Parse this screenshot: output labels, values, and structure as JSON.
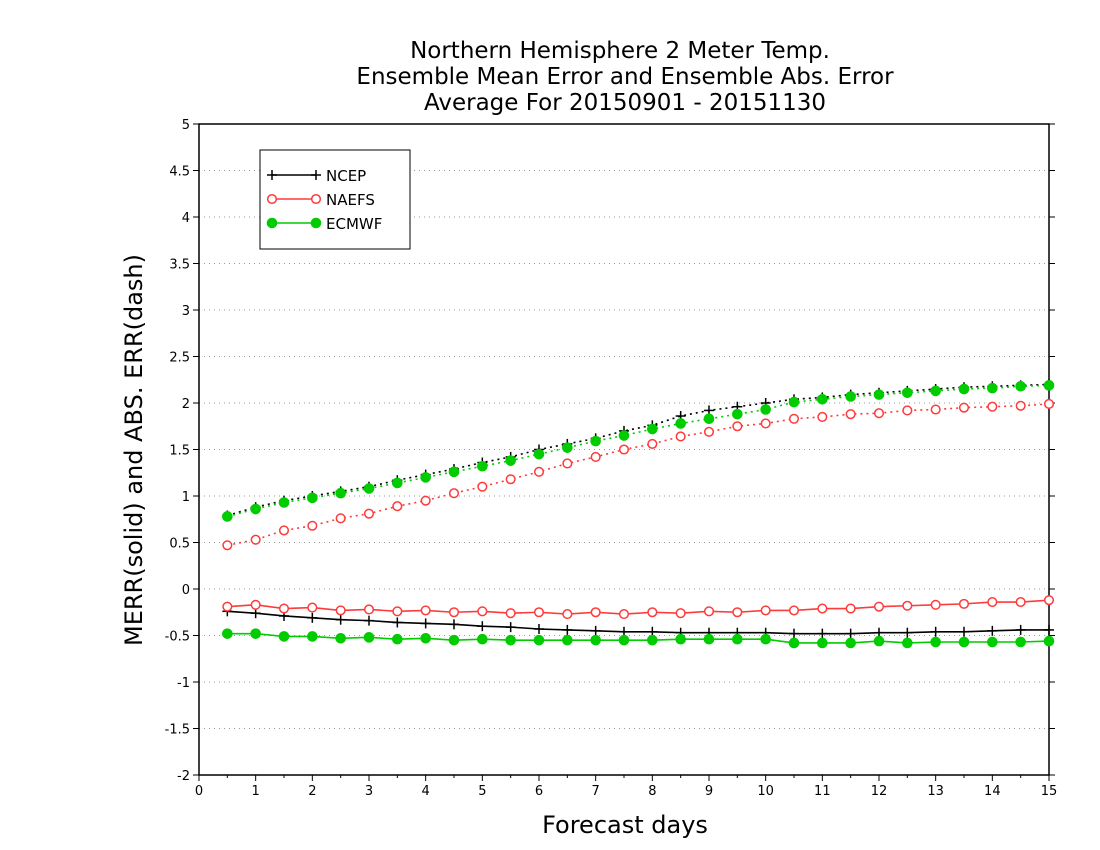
{
  "chart_data": {
    "type": "line",
    "title": [
      "Northern Hemisphere 2 Meter Temp.",
      "Ensemble Mean Error and Ensemble Abs. Error",
      "Average For 20150901 - 20151130"
    ],
    "xlabel": "Forecast days",
    "ylabel": "MERR(solid) and ABS. ERR(dash)",
    "xlim": [
      0,
      15
    ],
    "ylim": [
      -2,
      5
    ],
    "xticks": [
      "0",
      "1",
      "2",
      "3",
      "4",
      "5",
      "6",
      "7",
      "8",
      "9",
      "10",
      "11",
      "12",
      "13",
      "14",
      "15"
    ],
    "yticks": [
      "-2",
      "-1.5",
      "-1",
      "-0.5",
      "0",
      "0.5",
      "1",
      "1.5",
      "2",
      "2.5",
      "3",
      "3.5",
      "4",
      "4.5",
      "5"
    ],
    "grid": "horizontal dotted",
    "legend_position": "top-left",
    "x": [
      0.5,
      1,
      1.5,
      2,
      2.5,
      3,
      3.5,
      4,
      4.5,
      5,
      5.5,
      6,
      6.5,
      7,
      7.5,
      8,
      8.5,
      9,
      9.5,
      10,
      10.5,
      11,
      11.5,
      12,
      12.5,
      13,
      13.5,
      14,
      14.5,
      15
    ],
    "series": [
      {
        "name": "NCEP",
        "color": "#000000",
        "marker": "plus",
        "abs_err": [
          0.79,
          0.88,
          0.95,
          1.0,
          1.05,
          1.1,
          1.17,
          1.23,
          1.29,
          1.36,
          1.42,
          1.5,
          1.56,
          1.62,
          1.7,
          1.76,
          1.86,
          1.92,
          1.96,
          2.0,
          2.04,
          2.06,
          2.09,
          2.11,
          2.13,
          2.15,
          2.17,
          2.18,
          2.19,
          2.2
        ],
        "mean_err": [
          -0.24,
          -0.26,
          -0.29,
          -0.31,
          -0.33,
          -0.34,
          -0.36,
          -0.37,
          -0.38,
          -0.4,
          -0.41,
          -0.43,
          -0.44,
          -0.45,
          -0.46,
          -0.46,
          -0.47,
          -0.47,
          -0.47,
          -0.47,
          -0.48,
          -0.48,
          -0.48,
          -0.47,
          -0.47,
          -0.46,
          -0.46,
          -0.45,
          -0.44,
          -0.44
        ]
      },
      {
        "name": "NAEFS",
        "color": "#ff3a3a",
        "marker": "open-circle",
        "abs_err": [
          0.47,
          0.53,
          0.63,
          0.68,
          0.76,
          0.81,
          0.89,
          0.95,
          1.03,
          1.1,
          1.18,
          1.26,
          1.35,
          1.42,
          1.5,
          1.56,
          1.64,
          1.69,
          1.75,
          1.78,
          1.83,
          1.85,
          1.88,
          1.89,
          1.92,
          1.93,
          1.95,
          1.96,
          1.97,
          1.99
        ],
        "mean_err": [
          -0.19,
          -0.17,
          -0.21,
          -0.2,
          -0.23,
          -0.22,
          -0.24,
          -0.23,
          -0.25,
          -0.24,
          -0.26,
          -0.25,
          -0.27,
          -0.25,
          -0.27,
          -0.25,
          -0.26,
          -0.24,
          -0.25,
          -0.23,
          -0.23,
          -0.21,
          -0.21,
          -0.19,
          -0.18,
          -0.17,
          -0.16,
          -0.14,
          -0.14,
          -0.12
        ]
      },
      {
        "name": "ECMWF",
        "color": "#00cc00",
        "marker": "filled-circle",
        "abs_err": [
          0.78,
          0.86,
          0.93,
          0.98,
          1.03,
          1.08,
          1.14,
          1.2,
          1.26,
          1.32,
          1.38,
          1.45,
          1.52,
          1.59,
          1.65,
          1.72,
          1.78,
          1.83,
          1.88,
          1.93,
          2.01,
          2.04,
          2.07,
          2.09,
          2.11,
          2.13,
          2.15,
          2.16,
          2.18,
          2.19
        ],
        "mean_err": [
          -0.48,
          -0.48,
          -0.51,
          -0.51,
          -0.53,
          -0.52,
          -0.54,
          -0.53,
          -0.55,
          -0.54,
          -0.55,
          -0.55,
          -0.55,
          -0.55,
          -0.55,
          -0.55,
          -0.54,
          -0.54,
          -0.54,
          -0.54,
          -0.58,
          -0.58,
          -0.58,
          -0.56,
          -0.58,
          -0.57,
          -0.57,
          -0.57,
          -0.57,
          -0.56
        ]
      }
    ]
  }
}
